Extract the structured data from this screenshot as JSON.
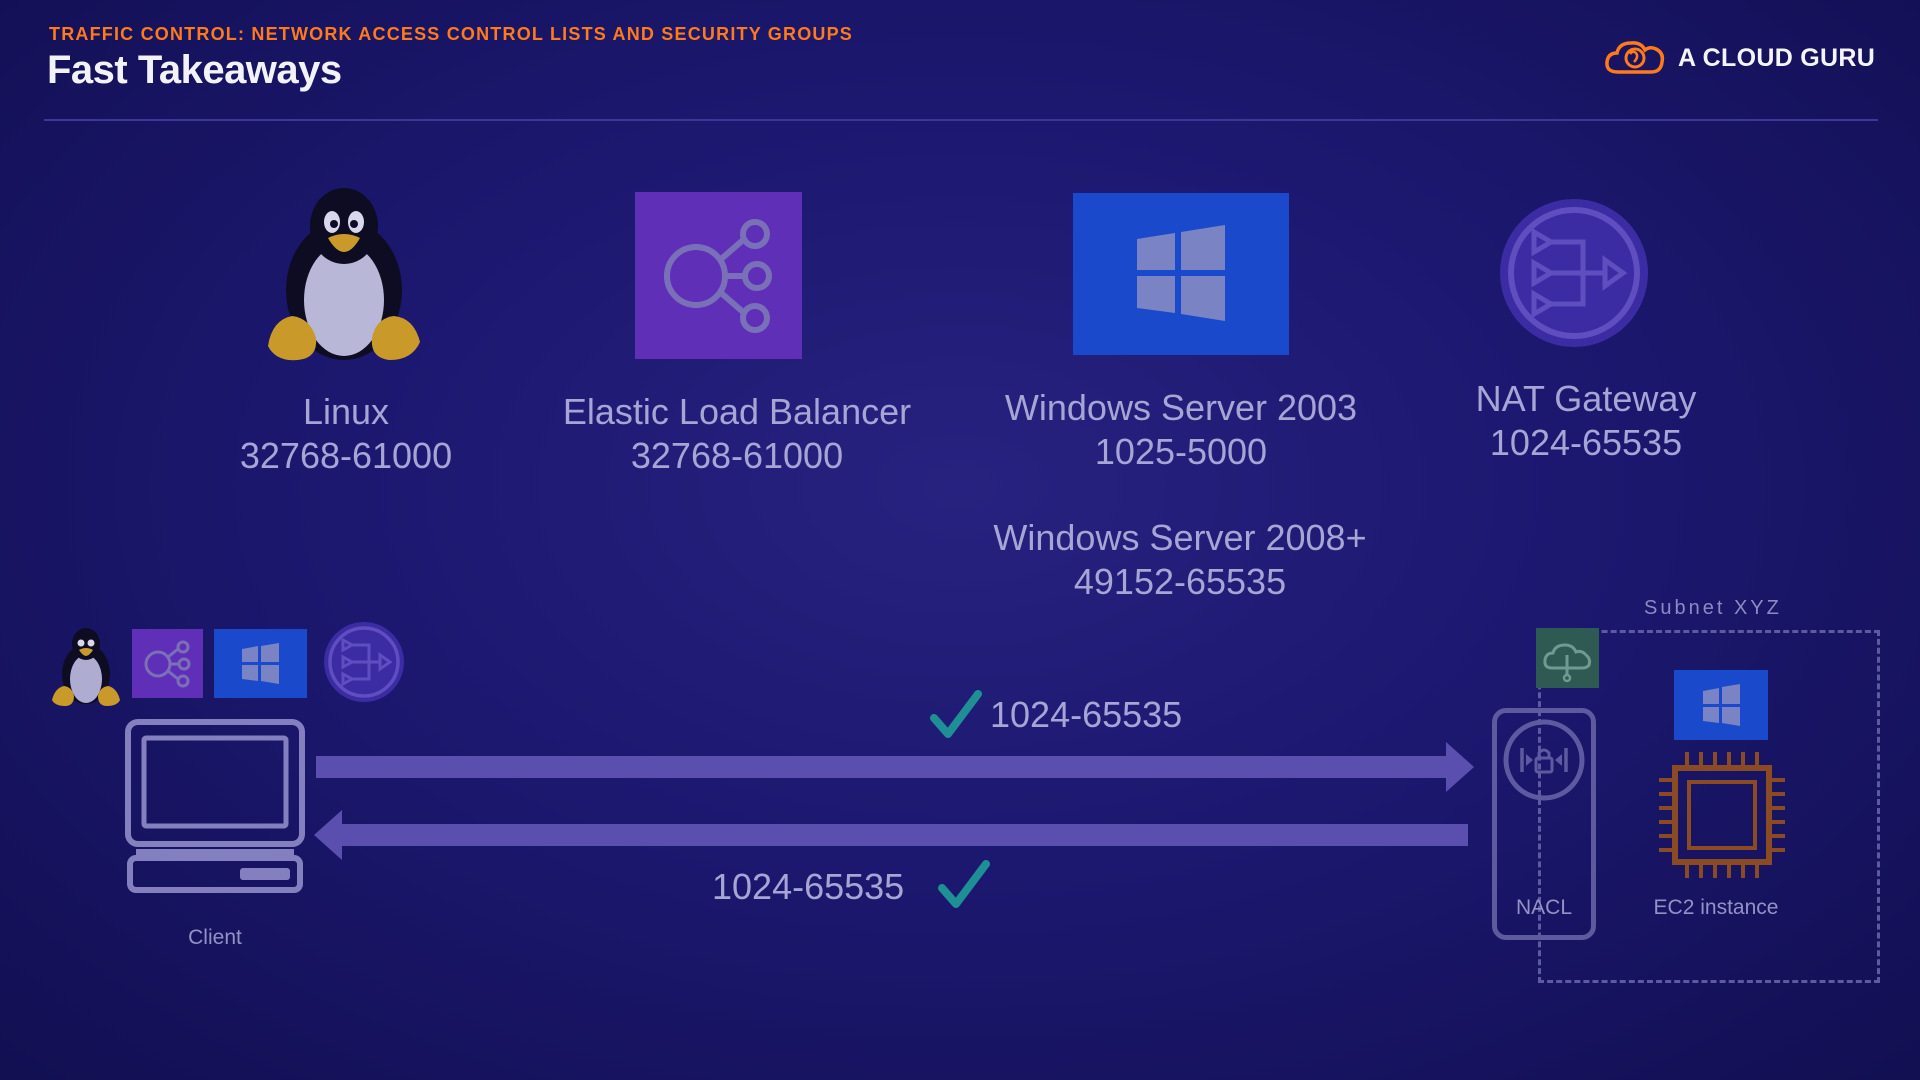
{
  "header": {
    "eyebrow": "TRAFFIC CONTROL: NETWORK ACCESS CONTROL LISTS AND SECURITY GROUPS",
    "title": "Fast Takeaways",
    "logo_text": "A CLOUD GURU"
  },
  "ranges": [
    {
      "icon": "linux-penguin-icon",
      "name": "Linux",
      "ports": "32768-61000"
    },
    {
      "icon": "load-balancer-icon",
      "name": "Elastic Load Balancer",
      "ports": "32768-61000"
    },
    {
      "icon": "windows-icon",
      "name": "Windows Server 2003",
      "ports": "1025-5000"
    },
    {
      "icon": "nat-gateway-icon",
      "name": "NAT Gateway",
      "ports": "1024-65535"
    }
  ],
  "windows_2008": {
    "name": "Windows Server 2008+",
    "ports": "49152-65535"
  },
  "flow": {
    "client_label": "Client",
    "outbound_ports": "1024-65535",
    "inbound_ports": "1024-65535",
    "nacl_label": "NACL",
    "subnet_label": "Subnet XYZ",
    "ec2_label": "EC2 instance"
  },
  "colors": {
    "accent": "#ff7a1a",
    "elb_purple": "#6a33c8",
    "windows_blue": "#1a4fd1",
    "check_teal": "#1f8f96",
    "arrow": "#5a4fae"
  }
}
